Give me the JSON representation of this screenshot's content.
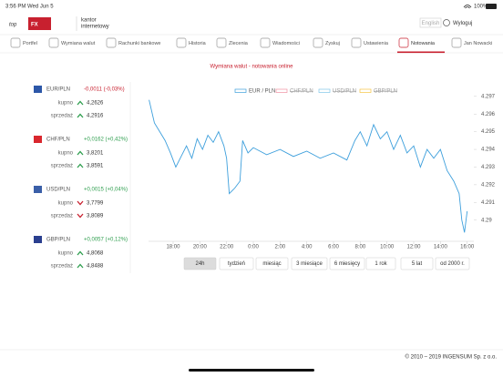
{
  "status_bar": {
    "time": "3:56 PM",
    "date": "Wed Jun 5",
    "battery": "100%"
  },
  "header": {
    "logo": [
      "top",
      "FX"
    ],
    "tagline": [
      "kantor",
      "internetowy"
    ],
    "language": "English",
    "logout": "Wyloguj"
  },
  "nav": [
    {
      "label": "Portfel",
      "active": false
    },
    {
      "label": "Wymiana walut",
      "active": false
    },
    {
      "label": "Rachunki bankowe",
      "active": false
    },
    {
      "label": "Historia",
      "active": false
    },
    {
      "label": "Zlecenia",
      "active": false
    },
    {
      "label": "Wiadomości",
      "active": false
    },
    {
      "label": "Zyskuj",
      "active": false
    },
    {
      "label": "Ustawienia",
      "active": false
    },
    {
      "label": "Notowania",
      "active": true
    },
    {
      "label": "Jan Nowacki",
      "active": false
    }
  ],
  "title": "Wymiana walut - notowania online",
  "currencies": [
    {
      "pair": "EUR/PLN",
      "change": "-0,0011 (-0,03%)",
      "direction": "down",
      "buy_label": "kupno",
      "buy": "4,2626",
      "buy_trend": "up",
      "sell_label": "sprzedaż",
      "sell": "4,2916",
      "sell_trend": "up"
    },
    {
      "pair": "CHF/PLN",
      "change": "+0,0162 (+0,42%)",
      "direction": "up",
      "buy_label": "kupno",
      "buy": "3,8201",
      "buy_trend": "up",
      "sell_label": "sprzedaż",
      "sell": "3,8591",
      "sell_trend": "up"
    },
    {
      "pair": "USD/PLN",
      "change": "+0,0015 (+0,04%)",
      "direction": "up",
      "buy_label": "kupno",
      "buy": "3,7799",
      "buy_trend": "down",
      "sell_label": "sprzedaż",
      "sell": "3,8089",
      "sell_trend": "down"
    },
    {
      "pair": "GBP/PLN",
      "change": "+0,0057 (+0,12%)",
      "direction": "up",
      "buy_label": "kupno",
      "buy": "4,8068",
      "buy_trend": "up",
      "sell_label": "sprzedaż",
      "sell": "4,8488",
      "sell_trend": "up"
    }
  ],
  "chart": {
    "type": "line",
    "x": [
      16.2,
      16.6,
      17.0,
      17.4,
      17.8,
      18.2,
      18.6,
      19.0,
      19.4,
      19.8,
      20.2,
      20.6,
      21.0,
      21.4,
      21.8,
      22.0,
      22.2,
      22.6,
      23.0,
      23.2,
      23.6,
      24.0,
      25.0,
      26.0,
      27.0,
      28.0,
      29.0,
      30.0,
      31.0,
      31.6,
      32.0,
      32.5,
      33.0,
      33.5,
      34.0,
      34.5,
      35.0,
      35.5,
      36.0,
      36.5,
      37.0,
      37.5,
      38.0,
      38.5,
      39.0,
      39.4,
      39.6,
      39.8,
      40.0
    ],
    "series": [
      {
        "name": "EUR / PLN",
        "color": "#3d9fdc",
        "visible": true,
        "values": [
          4.2968,
          4.2955,
          4.295,
          4.2945,
          4.2938,
          4.293,
          4.2936,
          4.2942,
          4.2935,
          4.2946,
          4.294,
          4.2948,
          4.2944,
          4.295,
          4.2942,
          4.2935,
          4.2915,
          4.2918,
          4.2922,
          4.2945,
          4.2938,
          4.2941,
          4.2937,
          4.294,
          4.2936,
          4.2939,
          4.2935,
          4.2938,
          4.2934,
          4.2945,
          4.295,
          4.2942,
          4.2954,
          4.2946,
          4.295,
          4.294,
          4.2948,
          4.2938,
          4.2942,
          4.293,
          4.294,
          4.2935,
          4.294,
          4.2928,
          4.2922,
          4.2915,
          4.29,
          4.2893,
          4.2905
        ]
      },
      {
        "name": "CHF/PLN",
        "color": "#f08fa0",
        "visible": false
      },
      {
        "name": "USD/PLN",
        "color": "#7fc7e8",
        "visible": false
      },
      {
        "name": "GBP/PLN",
        "color": "#f5c542",
        "visible": false
      }
    ],
    "xlim": [
      16.16,
      40.5
    ],
    "xticks": [
      {
        "value": 18,
        "label": "18:00"
      },
      {
        "value": 20,
        "label": "20:00"
      },
      {
        "value": 22,
        "label": "22:00"
      },
      {
        "value": 24,
        "label": "0:00"
      },
      {
        "value": 26,
        "label": "2:00"
      },
      {
        "value": 28,
        "label": "4:00"
      },
      {
        "value": 30,
        "label": "6:00"
      },
      {
        "value": 32,
        "label": "8:00"
      },
      {
        "value": 34,
        "label": "10:00"
      },
      {
        "value": 36,
        "label": "12:00"
      },
      {
        "value": 38,
        "label": "14:00"
      },
      {
        "value": 40,
        "label": "16:00"
      }
    ],
    "ylim": [
      4.2888,
      4.2973
    ],
    "yticks": [
      4.29,
      4.291,
      4.292,
      4.293,
      4.294,
      4.295,
      4.296,
      4.297
    ]
  },
  "periods": [
    {
      "label": "24h",
      "active": true
    },
    {
      "label": "tydzień",
      "active": false
    },
    {
      "label": "miesiąc",
      "active": false
    },
    {
      "label": "3 miesiące",
      "active": false
    },
    {
      "label": "6 miesięcy",
      "active": false
    },
    {
      "label": "1 rok",
      "active": false
    },
    {
      "label": "5 lat",
      "active": false
    },
    {
      "label": "od 2000 r.",
      "active": false
    }
  ],
  "footer": "© 2010 – 2019 INGENSUM Sp. z o.o."
}
